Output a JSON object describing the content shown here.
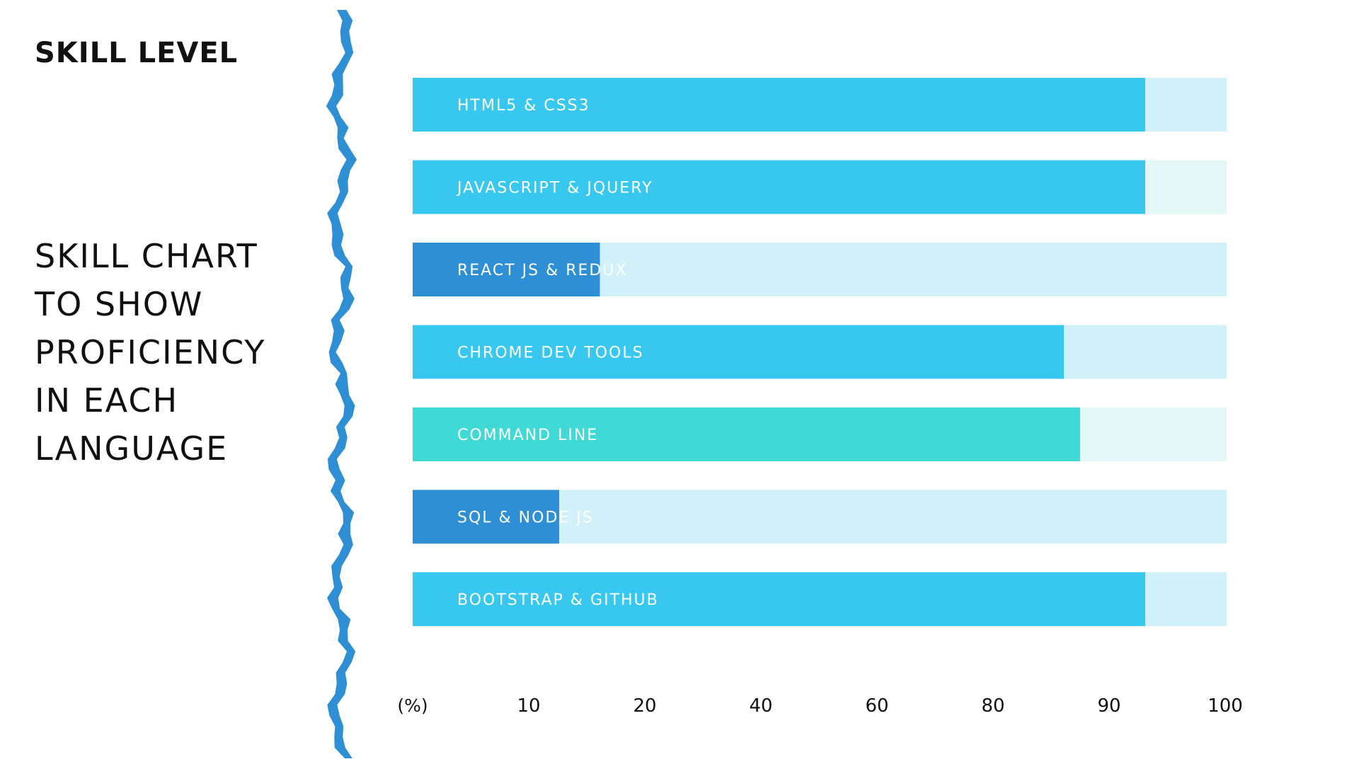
{
  "heading": "SKILL LEVEL",
  "subtitle_lines": [
    "SKILL CHART",
    "TO SHOW",
    "PROFICIENCY",
    "IN EACH",
    "LANGUAGE"
  ],
  "colors": {
    "divider": "#2E8FD4",
    "bar_light_blue": "#38C8EF",
    "bar_dark_blue": "#2E8FD4",
    "bar_teal": "#3FD9D6",
    "track_blue": "#D1F1FA",
    "track_mint": "#E3F8F6",
    "bar_label": "#FFFFFF",
    "axis_label": "#111111"
  },
  "chart_data": {
    "type": "bar",
    "orientation": "horizontal",
    "categories": [
      "HTML5 & CSS3",
      "JAVASCRIPT & JQUERY",
      "REACT JS & REDUX",
      "CHROME DEV TOOLS",
      "COMMAND LINE",
      "SQL & NODE JS",
      "BOOTSTRAP & GITHUB"
    ],
    "values": [
      90,
      90,
      23,
      80,
      82,
      18,
      90
    ],
    "bar_colors": [
      "#38C8EF",
      "#38C8EF",
      "#2E8FD4",
      "#38C8EF",
      "#3FD9D6",
      "#2E8FD4",
      "#38C8EF"
    ],
    "track_colors": [
      "#D1F1FA",
      "#E3F8F6",
      "#D1F1FA",
      "#D1F1FA",
      "#E3F8F6",
      "#D1F1FA",
      "#D1F1FA"
    ],
    "x_unit_label": "(%)",
    "x_tick_labels": [
      "10",
      "20",
      "40",
      "60",
      "80",
      "90",
      "100"
    ],
    "xlim": [
      0,
      100
    ],
    "grid": false,
    "legend": false
  }
}
